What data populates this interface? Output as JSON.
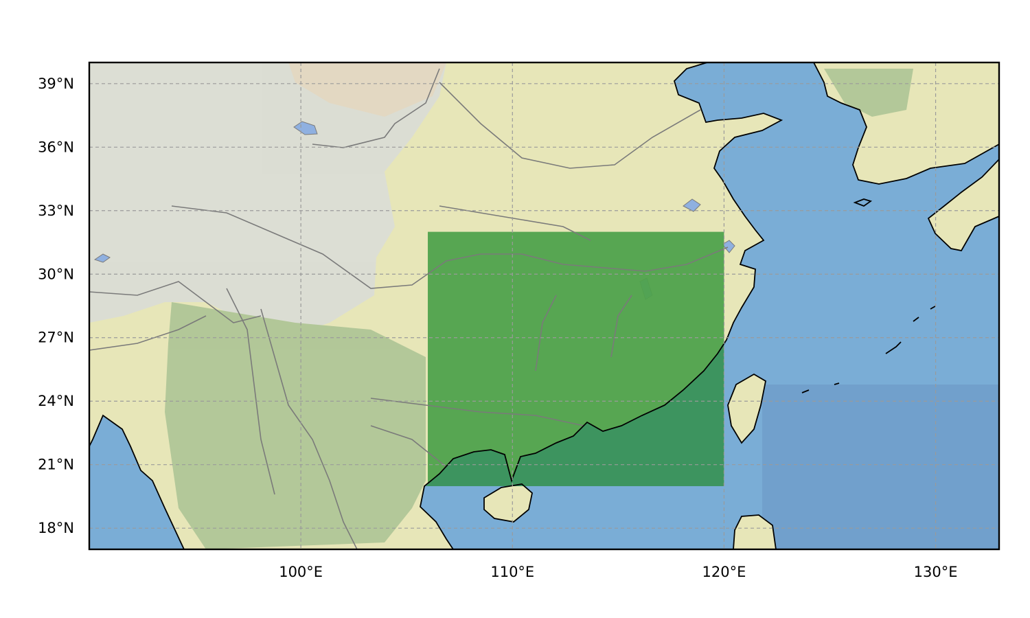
{
  "map": {
    "lon_range": [
      90,
      133
    ],
    "lat_range": [
      17,
      40
    ],
    "colors": {
      "ocean": "#7aadd6",
      "ocean_deep": "#6a98c4",
      "land_low": "#e7e6b8",
      "land_green": "#a9c293",
      "highland": "#d9dcd8",
      "desert": "#e3d6c4",
      "lake": "#8fb0e0",
      "highlight": "#4fa24c",
      "highlight_sea": "#3c9360",
      "river": "#7a7a7a",
      "coast": "#000000",
      "grid": "#9a9a9a"
    },
    "highlight_box": {
      "lon_min": 106,
      "lon_max": 120,
      "lat_min": 20,
      "lat_max": 32
    },
    "x_ticks": [
      {
        "lon": 100,
        "label": "100°E"
      },
      {
        "lon": 110,
        "label": "110°E"
      },
      {
        "lon": 120,
        "label": "120°E"
      },
      {
        "lon": 130,
        "label": "130°E"
      }
    ],
    "y_ticks": [
      {
        "lat": 39,
        "label": "39°N"
      },
      {
        "lat": 36,
        "label": "36°N"
      },
      {
        "lat": 33,
        "label": "33°N"
      },
      {
        "lat": 30,
        "label": "30°N"
      },
      {
        "lat": 27,
        "label": "27°N"
      },
      {
        "lat": 24,
        "label": "24°N"
      },
      {
        "lat": 21,
        "label": "21°N"
      },
      {
        "lat": 18,
        "label": "18°N"
      }
    ]
  }
}
